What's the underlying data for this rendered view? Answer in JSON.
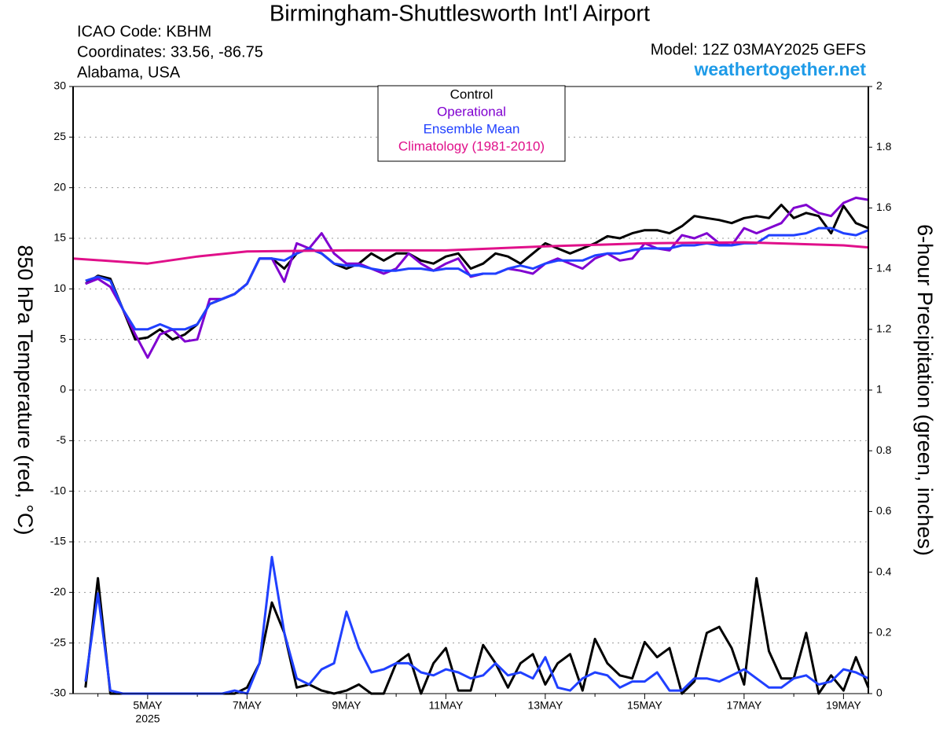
{
  "chart_data": {
    "type": "line",
    "title": "Birmingham-Shuttlesworth Int'l Airport",
    "info": [
      "ICAO Code: KBHM",
      "Coordinates: 33.56, -86.75",
      "Alabama, USA"
    ],
    "model": "Model: 12Z 03MAY2025 GEFS",
    "site": "weathertogether.net",
    "ylabel": "850 hPa Temperature (red, °C)",
    "y2label": "6-hour Precipitation (green, inches)",
    "year_label": "2025",
    "xlim": [
      3.5,
      19.5
    ],
    "xticks": [
      {
        "value": 5,
        "label": "5MAY"
      },
      {
        "value": 7,
        "label": "7MAY"
      },
      {
        "value": 9,
        "label": "9MAY"
      },
      {
        "value": 11,
        "label": "11MAY"
      },
      {
        "value": 13,
        "label": "13MAY"
      },
      {
        "value": 15,
        "label": "15MAY"
      },
      {
        "value": 17,
        "label": "17MAY"
      },
      {
        "value": 19,
        "label": "19MAY"
      }
    ],
    "xminorticks": [
      4,
      6,
      8,
      10,
      12,
      14,
      16,
      18
    ],
    "ylim": [
      -30,
      30
    ],
    "yticks": [
      -30,
      -25,
      -20,
      -15,
      -10,
      -5,
      0,
      5,
      10,
      15,
      20,
      25,
      30
    ],
    "y2lim": [
      0,
      2
    ],
    "y2ticks": [
      0,
      0.2,
      0.4,
      0.6,
      0.8,
      1,
      1.2,
      1.4,
      1.6,
      1.8,
      2
    ],
    "grid": true,
    "x": [
      3.75,
      4,
      4.25,
      4.5,
      4.75,
      5,
      5.25,
      5.5,
      5.75,
      6,
      6.25,
      6.5,
      6.75,
      7,
      7.25,
      7.5,
      7.75,
      8,
      8.25,
      8.5,
      8.75,
      9,
      9.25,
      9.5,
      9.75,
      10,
      10.25,
      10.5,
      10.75,
      11,
      11.25,
      11.5,
      11.75,
      12,
      12.25,
      12.5,
      12.75,
      13,
      13.25,
      13.5,
      13.75,
      14,
      14.25,
      14.5,
      14.75,
      15,
      15.25,
      15.5,
      15.75,
      16,
      16.25,
      16.5,
      16.75,
      17,
      17.25,
      17.5,
      17.75,
      18,
      18.25,
      18.5,
      18.75,
      19,
      19.25,
      19.5
    ],
    "series": [
      {
        "name": "Control",
        "color": "#000000",
        "axis": "y",
        "values": [
          10.5,
          11.3,
          11,
          8,
          5,
          5.2,
          6,
          5,
          5.5,
          6.5,
          8.5,
          9,
          9.5,
          10.5,
          13,
          13,
          12,
          13.5,
          14,
          13.5,
          12.5,
          12,
          12.5,
          13.5,
          12.8,
          13.5,
          13.5,
          12.8,
          12.5,
          13.2,
          13.5,
          12,
          12.5,
          13.5,
          13.2,
          12.5,
          13.5,
          14.5,
          14,
          13.5,
          14,
          14.5,
          15.2,
          15,
          15.5,
          15.8,
          15.8,
          15.5,
          16.2,
          17.2,
          17,
          16.8,
          16.5,
          17,
          17.2,
          17,
          18.3,
          17,
          17.5,
          17.2,
          15.5,
          18.2,
          16.5,
          16
        ]
      },
      {
        "name": "Operational",
        "color": "#8000d0",
        "axis": "y",
        "values": [
          10.5,
          11,
          10.2,
          8,
          5.5,
          3.2,
          5.5,
          6,
          4.8,
          5,
          9,
          9,
          9.5,
          10.5,
          13,
          13,
          10.7,
          14.5,
          14,
          15.5,
          13.5,
          12.5,
          12.5,
          12,
          11.5,
          12,
          13.5,
          12.5,
          11.8,
          12.5,
          13,
          11.2,
          11.5,
          11.5,
          12,
          11.8,
          11.5,
          12.5,
          13,
          12.5,
          12,
          13,
          13.5,
          12.8,
          13,
          14.5,
          14,
          13.8,
          15.3,
          15,
          15.5,
          14.5,
          14.3,
          16,
          15.5,
          16,
          16.5,
          18,
          18.3,
          17.5,
          17.2,
          18.5,
          19,
          18.8
        ]
      },
      {
        "name": "Ensemble Mean",
        "color": "#2040ff",
        "axis": "y",
        "values": [
          10.8,
          11.2,
          10.8,
          8,
          6,
          6,
          6.5,
          6,
          6,
          6.5,
          8.5,
          9,
          9.5,
          10.5,
          13,
          13,
          12.8,
          13.5,
          14,
          13.5,
          12.5,
          12.3,
          12.3,
          12,
          11.8,
          11.8,
          12,
          12,
          11.8,
          12,
          12,
          11.3,
          11.5,
          11.5,
          12,
          12.3,
          12,
          12.5,
          12.8,
          12.8,
          12.8,
          13.3,
          13.5,
          13.5,
          13.8,
          14,
          14,
          14,
          14.3,
          14.3,
          14.5,
          14.3,
          14.3,
          14.5,
          14.5,
          15.3,
          15.3,
          15.3,
          15.5,
          16,
          16,
          15.5,
          15.3,
          15.8
        ]
      },
      {
        "name": "Climatology (1981-2010)",
        "color": "#e0108a",
        "axis": "y",
        "x": [
          3.5,
          5,
          6,
          7,
          9,
          11,
          13,
          15,
          17,
          19,
          19.5
        ],
        "values": [
          13,
          12.5,
          13.2,
          13.7,
          13.8,
          13.8,
          14.2,
          14.5,
          14.6,
          14.3,
          14.1
        ]
      },
      {
        "color": "#000000",
        "axis": "y2",
        "values": [
          0.02,
          0.38,
          0,
          0,
          0,
          0,
          0,
          0,
          0,
          0,
          0,
          0,
          0,
          0.02,
          0.1,
          0.3,
          0.2,
          0.02,
          0.03,
          0.01,
          0,
          0.01,
          0.03,
          0,
          0,
          0.1,
          0.13,
          0,
          0.1,
          0.15,
          0.01,
          0.01,
          0.16,
          0.1,
          0.02,
          0.1,
          0.13,
          0.03,
          0.1,
          0.13,
          0.01,
          0.18,
          0.1,
          0.06,
          0.05,
          0.17,
          0.12,
          0.15,
          0,
          0.04,
          0.2,
          0.22,
          0.15,
          0.03,
          0.38,
          0.14,
          0.05,
          0.05,
          0.2,
          0,
          0.06,
          0.01,
          0.12,
          0.02
        ]
      },
      {
        "color": "#2040ff",
        "axis": "y2",
        "values": [
          0.04,
          0.33,
          0.01,
          0,
          0,
          0,
          0,
          0,
          0,
          0,
          0,
          0,
          0.01,
          0,
          0.1,
          0.45,
          0.2,
          0.05,
          0.03,
          0.08,
          0.1,
          0.27,
          0.15,
          0.07,
          0.08,
          0.1,
          0.1,
          0.07,
          0.06,
          0.08,
          0.07,
          0.05,
          0.06,
          0.1,
          0.06,
          0.07,
          0.05,
          0.12,
          0.02,
          0.01,
          0.05,
          0.07,
          0.06,
          0.02,
          0.04,
          0.04,
          0.07,
          0.01,
          0.01,
          0.05,
          0.05,
          0.04,
          0.06,
          0.08,
          0.05,
          0.02,
          0.02,
          0.05,
          0.06,
          0.03,
          0.04,
          0.08,
          0.07,
          0.05
        ]
      }
    ]
  }
}
